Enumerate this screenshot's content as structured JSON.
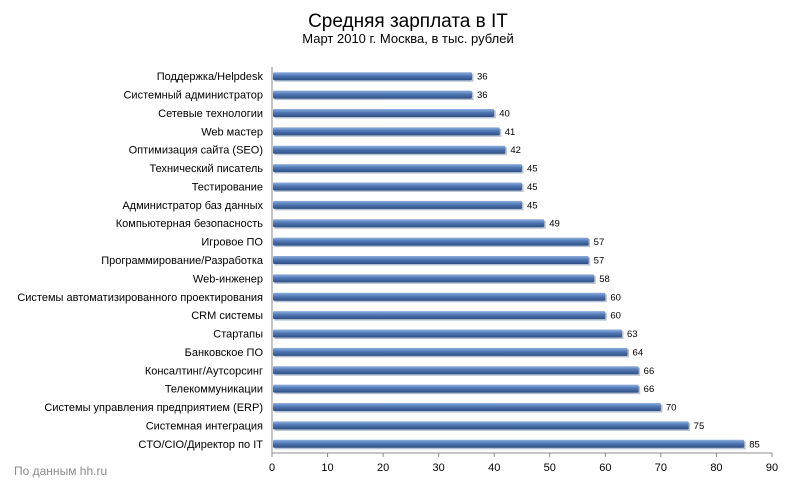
{
  "source_note": "По данным hh.ru",
  "colors": {
    "bar": "#4f77b5",
    "bar_dark": "#2f4f82",
    "bar_light": "#8fb0dd",
    "axis": "#8c8c8c"
  },
  "chart_data": {
    "type": "bar",
    "orientation": "horizontal",
    "title": "Средняя зарплата в IT",
    "subtitle": "Март 2010 г. Москва, в тыс. рублей",
    "categories": [
      "Поддержка/Helpdesk",
      "Системный  администратор",
      "Сетевые технологии",
      "Web мастер",
      "Оптимизация  сайта (SEO)",
      "Технический писатель",
      "Тестирование",
      "Администратор баз данных",
      "Компьютерная безопасность",
      "Игровое ПО",
      "Программирование/Разработка",
      "Web-инженер",
      "Системы  автоматизированного  проектирования",
      "CRM системы",
      "Стартапы",
      "Банковское ПО",
      "Консалтинг/Аутсорсинг",
      "Телекоммуникации",
      "Системы  управления  предприятием (ERP)",
      "Системная  интеграция",
      "CTO/CIO/Директор по IT"
    ],
    "values": [
      36,
      36,
      40,
      41,
      42,
      45,
      45,
      45,
      49,
      57,
      57,
      58,
      60,
      60,
      63,
      64,
      66,
      66,
      70,
      75,
      85
    ],
    "xlim": [
      0,
      90
    ],
    "xticks": [
      "0",
      "10",
      "20",
      "30",
      "40",
      "50",
      "60",
      "70",
      "80",
      "90"
    ],
    "grid": false,
    "data_labels": true
  }
}
